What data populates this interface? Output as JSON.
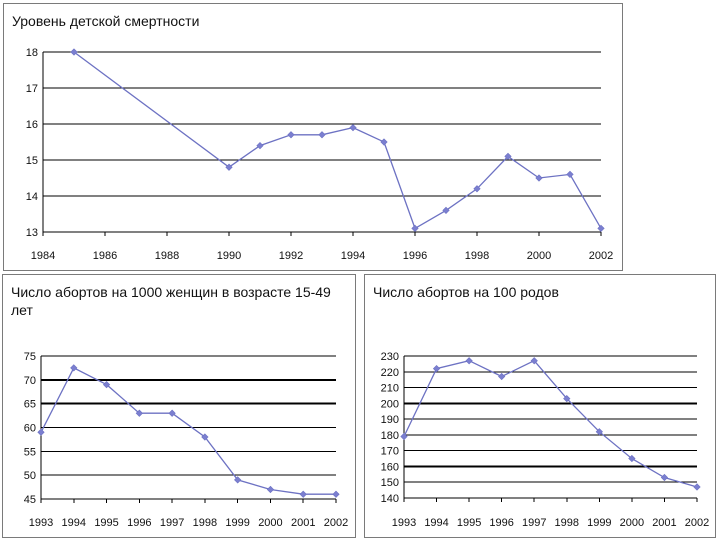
{
  "chart_data": [
    {
      "type": "line",
      "title": "Уровень детской смертности",
      "x": [
        1985,
        1990,
        1991,
        1992,
        1993,
        1994,
        1995,
        1996,
        1997,
        1998,
        1999,
        2000,
        2001,
        2002
      ],
      "series": [
        {
          "values": [
            18.0,
            14.8,
            15.4,
            15.7,
            15.7,
            15.9,
            15.5,
            13.1,
            13.6,
            14.2,
            15.1,
            14.5,
            14.6,
            13.1
          ]
        }
      ],
      "xticks": [
        1984,
        1986,
        1988,
        1990,
        1992,
        1994,
        1996,
        1998,
        2000,
        2002
      ],
      "yticks": [
        13,
        14,
        15,
        16,
        17,
        18
      ],
      "xlim": [
        1984,
        2002
      ],
      "ylim": [
        13,
        18
      ],
      "grid": "horizontal",
      "line_color": "#6d72c3",
      "marker_color": "#7b7fd0",
      "grid_color": "#000000"
    },
    {
      "type": "line",
      "title": "Число абортов на 1000 женщин в возрасте 15-49 лет",
      "x": [
        1993,
        1994,
        1995,
        1996,
        1997,
        1998,
        1999,
        2000,
        2001,
        2002
      ],
      "series": [
        {
          "values": [
            59,
            72.5,
            69,
            63,
            63,
            58,
            49,
            47,
            46,
            46
          ]
        }
      ],
      "xticks": [
        1993,
        1994,
        1995,
        1996,
        1997,
        1998,
        1999,
        2000,
        2001,
        2002
      ],
      "yticks": [
        45,
        50,
        55,
        60,
        65,
        70,
        75
      ],
      "xlim": [
        1993,
        2002
      ],
      "ylim": [
        45,
        75
      ],
      "grid": "horizontal",
      "bold_gridlines": [
        65,
        70
      ],
      "line_color": "#6d72c3",
      "marker_color": "#7b7fd0",
      "grid_color": "#000000"
    },
    {
      "type": "line",
      "title": "Число абортов на 100 родов",
      "x": [
        1993,
        1994,
        1995,
        1996,
        1997,
        1998,
        1999,
        2000,
        2001,
        2002
      ],
      "series": [
        {
          "values": [
            179,
            222,
            227,
            217,
            227,
            203,
            182,
            165,
            153,
            147
          ]
        }
      ],
      "xticks": [
        1993,
        1994,
        1995,
        1996,
        1997,
        1998,
        1999,
        2000,
        2001,
        2002
      ],
      "yticks": [
        140,
        150,
        160,
        170,
        180,
        190,
        200,
        210,
        220,
        230
      ],
      "xlim": [
        1993,
        2002
      ],
      "ylim": [
        140,
        230
      ],
      "grid": "horizontal",
      "bold_gridlines": [
        160,
        200
      ],
      "line_color": "#6d72c3",
      "marker_color": "#7b7fd0",
      "grid_color": "#000000"
    }
  ]
}
